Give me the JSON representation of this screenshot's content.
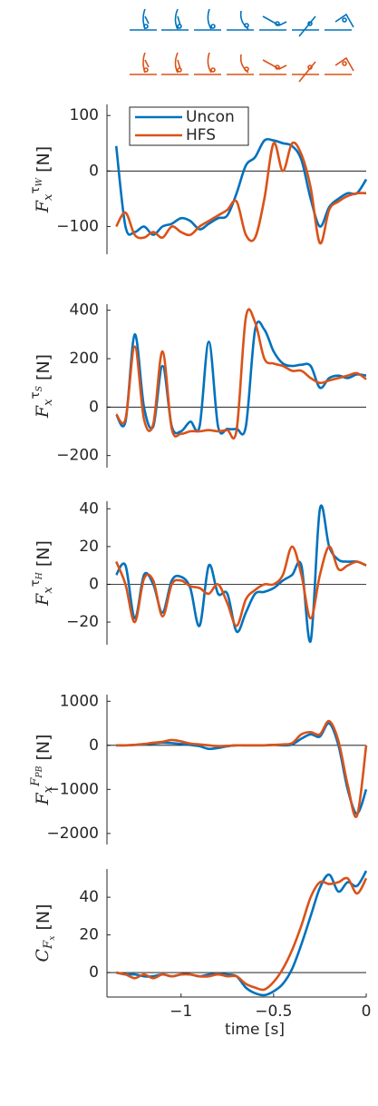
{
  "chart_data": [
    {
      "type": "line",
      "ylabel": "F_x^{τ_W} [N]",
      "x": [
        -1.35,
        -1.3,
        -1.25,
        -1.2,
        -1.15,
        -1.1,
        -1.05,
        -1.0,
        -0.95,
        -0.9,
        -0.85,
        -0.8,
        -0.75,
        -0.7,
        -0.65,
        -0.6,
        -0.55,
        -0.5,
        -0.45,
        -0.4,
        -0.35,
        -0.3,
        -0.25,
        -0.2,
        -0.15,
        -0.1,
        -0.05,
        0
      ],
      "series": [
        {
          "name": "Uncon",
          "color": "#0072BD",
          "values": [
            45,
            -100,
            -110,
            -100,
            -115,
            -100,
            -95,
            -85,
            -90,
            -105,
            -95,
            -85,
            -80,
            -40,
            10,
            25,
            55,
            55,
            50,
            45,
            20,
            -50,
            -100,
            -65,
            -50,
            -40,
            -40,
            -15
          ]
        },
        {
          "name": "HFS",
          "color": "#D95319",
          "values": [
            -100,
            -75,
            -115,
            -120,
            -110,
            -120,
            -100,
            -110,
            -115,
            -100,
            -90,
            -80,
            -70,
            -55,
            -115,
            -120,
            -50,
            50,
            0,
            50,
            30,
            -30,
            -130,
            -70,
            -55,
            -45,
            -40,
            -40
          ]
        }
      ],
      "xlim": [
        -1.4,
        0
      ],
      "ylim": [
        -150,
        120
      ],
      "yticks": [
        {
          "value": -100,
          "label": "−100"
        },
        0,
        100
      ],
      "zero_line": true,
      "legend": "upper-left"
    },
    {
      "type": "line",
      "ylabel": "F_x^{τ_S} [N]",
      "x": [
        -1.35,
        -1.3,
        -1.25,
        -1.2,
        -1.15,
        -1.1,
        -1.05,
        -1.0,
        -0.95,
        -0.9,
        -0.85,
        -0.8,
        -0.75,
        -0.7,
        -0.65,
        -0.6,
        -0.55,
        -0.5,
        -0.45,
        -0.4,
        -0.35,
        -0.3,
        -0.25,
        -0.2,
        -0.15,
        -0.1,
        -0.05,
        0
      ],
      "series": [
        {
          "name": "Uncon",
          "color": "#0072BD",
          "values": [
            -30,
            -60,
            300,
            0,
            -80,
            170,
            -80,
            -100,
            -60,
            -80,
            270,
            -80,
            -90,
            -90,
            -80,
            320,
            320,
            230,
            180,
            170,
            175,
            170,
            80,
            120,
            130,
            120,
            135,
            130
          ]
        },
        {
          "name": "HFS",
          "color": "#D95319",
          "values": [
            -30,
            -50,
            250,
            -50,
            -70,
            230,
            -90,
            -110,
            -100,
            -100,
            -95,
            -100,
            -95,
            -95,
            370,
            350,
            200,
            180,
            170,
            150,
            150,
            120,
            100,
            110,
            120,
            130,
            140,
            115
          ]
        }
      ],
      "xlim": [
        -1.4,
        0
      ],
      "ylim": [
        -250,
        425
      ],
      "yticks": [
        {
          "value": -200,
          "label": "−200"
        },
        0,
        200,
        400
      ],
      "zero_line": true
    },
    {
      "type": "line",
      "ylabel": "F_x^{τ_H} [N]",
      "x": [
        -1.35,
        -1.3,
        -1.25,
        -1.2,
        -1.15,
        -1.1,
        -1.05,
        -1.0,
        -0.95,
        -0.9,
        -0.85,
        -0.8,
        -0.75,
        -0.7,
        -0.65,
        -0.6,
        -0.55,
        -0.5,
        -0.45,
        -0.4,
        -0.35,
        -0.3,
        -0.25,
        -0.2,
        -0.15,
        -0.1,
        -0.05,
        0
      ],
      "series": [
        {
          "name": "Uncon",
          "color": "#0072BD",
          "values": [
            5,
            10,
            -18,
            5,
            0,
            -15,
            2,
            4,
            -2,
            -22,
            10,
            -5,
            -5,
            -25,
            -15,
            -5,
            -4,
            -2,
            2,
            5,
            10,
            -30,
            40,
            20,
            13,
            12,
            12,
            10
          ]
        },
        {
          "name": "HFS",
          "color": "#D95319",
          "values": [
            12,
            0,
            -20,
            3,
            2,
            -17,
            0,
            2,
            -1,
            -2,
            -5,
            0,
            -10,
            -22,
            -8,
            -3,
            0,
            0,
            5,
            20,
            5,
            -18,
            5,
            20,
            8,
            10,
            12,
            10
          ]
        }
      ],
      "xlim": [
        -1.4,
        0
      ],
      "ylim": [
        -32,
        44
      ],
      "yticks": [
        {
          "value": -20,
          "label": "−20"
        },
        0,
        20,
        40
      ],
      "zero_line": true
    },
    {
      "type": "line",
      "ylabel": "F_x^{F_{PB}} [N]",
      "x": [
        -1.35,
        -1.3,
        -1.25,
        -1.2,
        -1.15,
        -1.1,
        -1.05,
        -1.0,
        -0.95,
        -0.9,
        -0.85,
        -0.8,
        -0.75,
        -0.7,
        -0.65,
        -0.6,
        -0.55,
        -0.5,
        -0.45,
        -0.4,
        -0.35,
        -0.3,
        -0.25,
        -0.2,
        -0.15,
        -0.1,
        -0.05,
        0
      ],
      "series": [
        {
          "name": "Uncon",
          "color": "#0072BD",
          "values": [
            0,
            0,
            10,
            20,
            40,
            60,
            50,
            30,
            10,
            -20,
            -80,
            -60,
            -20,
            0,
            0,
            0,
            0,
            10,
            0,
            20,
            150,
            250,
            200,
            500,
            0,
            -1000,
            -1550,
            -1000
          ]
        },
        {
          "name": "HFS",
          "color": "#D95319",
          "values": [
            0,
            0,
            10,
            30,
            60,
            80,
            120,
            90,
            40,
            20,
            0,
            -20,
            -10,
            0,
            0,
            0,
            0,
            10,
            20,
            50,
            250,
            300,
            250,
            550,
            100,
            -900,
            -1600,
            0
          ]
        }
      ],
      "xlim": [
        -1.4,
        0
      ],
      "ylim": [
        -2250,
        1150
      ],
      "yticks": [
        {
          "value": -2000,
          "label": "−2000"
        },
        {
          "value": -1000,
          "label": "−1000"
        },
        0,
        1000
      ],
      "zero_line": true
    },
    {
      "type": "line",
      "ylabel": "C_{F_x} [N]",
      "x": [
        -1.35,
        -1.3,
        -1.25,
        -1.2,
        -1.15,
        -1.1,
        -1.05,
        -1.0,
        -0.95,
        -0.9,
        -0.85,
        -0.8,
        -0.75,
        -0.7,
        -0.65,
        -0.6,
        -0.55,
        -0.5,
        -0.45,
        -0.4,
        -0.35,
        -0.3,
        -0.25,
        -0.2,
        -0.15,
        -0.1,
        -0.05,
        0
      ],
      "series": [
        {
          "name": "Uncon",
          "color": "#0072BD",
          "values": [
            0,
            -1,
            -1,
            -2,
            -2,
            -1,
            -2,
            -1,
            -1,
            -2,
            -1,
            -1,
            -1,
            -2,
            -8,
            -11,
            -12,
            -10,
            -6,
            2,
            15,
            30,
            45,
            52,
            43,
            48,
            46,
            54
          ]
        },
        {
          "name": "HFS",
          "color": "#D95319",
          "values": [
            0,
            -1,
            -3,
            -1,
            -3,
            -1,
            -2,
            -1,
            -1,
            -2,
            -2,
            -1,
            -2,
            -2,
            -6,
            -8,
            -9,
            -5,
            2,
            12,
            25,
            40,
            48,
            47,
            48,
            50,
            42,
            50
          ]
        }
      ],
      "xlim": [
        -1.4,
        0
      ],
      "ylim": [
        -13,
        55
      ],
      "yticks": [
        0,
        20,
        40
      ],
      "xticks": [
        {
          "value": -1,
          "label": "−1"
        },
        {
          "value": -0.5,
          "label": "−0.5"
        },
        0
      ],
      "xlabel": "time [s]",
      "zero_line": true
    }
  ]
}
